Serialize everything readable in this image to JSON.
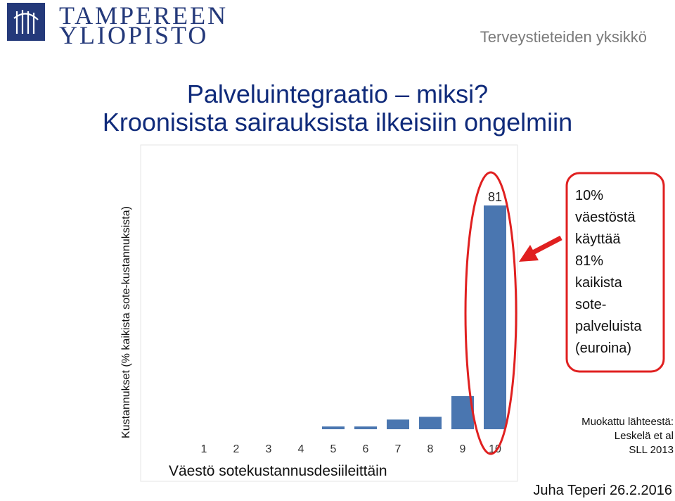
{
  "header": {
    "logo_line1": "TAMPEREEN",
    "logo_line2": "YLIOPISTO",
    "unit": "Terveystieteiden yksikkö"
  },
  "slide": {
    "title_line1": "Palveluintegraatio – miksi?",
    "title_line2": "Kroonisista sairauksista ilkeisiin ongelmiin"
  },
  "chart_data": {
    "type": "bar",
    "categories": [
      "1",
      "2",
      "3",
      "4",
      "5",
      "6",
      "7",
      "8",
      "9",
      "10"
    ],
    "values": [
      0,
      0,
      0,
      0,
      1,
      1,
      3.5,
      4.5,
      12,
      81
    ],
    "data_labels": [
      {
        "category": "10",
        "text": "81"
      }
    ],
    "xlabel": "Väestö sotekustannusdesiileittäin",
    "ylabel": "Kustannukset (% kaikista sote-kustannuksista)",
    "ylim": [
      0,
      81
    ],
    "grid": false,
    "legend": "none",
    "bar_color": "#4a76b0",
    "highlight_color": "#e02020"
  },
  "callout": {
    "text": "10%\nväestöstä\nkäyttää\n81%\nkaikista\nsote-\npalveluista\n(euroina)"
  },
  "source": {
    "line1": "Muokattu lähteestä:",
    "line2": "Leskelä et al",
    "line3": "SLL 2013"
  },
  "footer": {
    "author": "Juha Teperi 26.2.2016"
  }
}
